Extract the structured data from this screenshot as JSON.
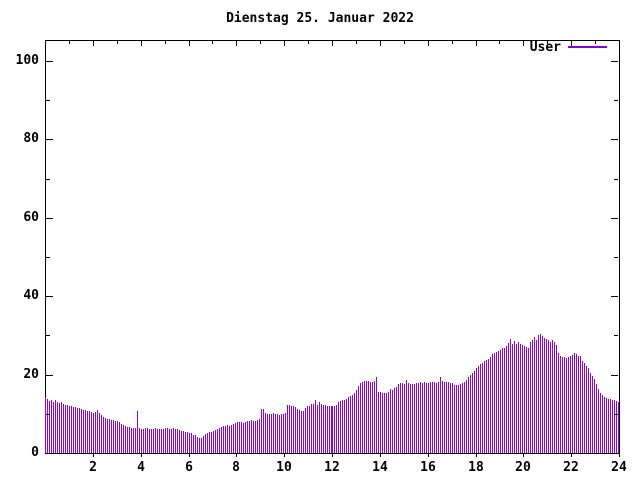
{
  "chart_data": {
    "type": "bar",
    "title": "Dienstag 25. Januar 2022",
    "legend": {
      "label": "User",
      "position": "top-right-inside"
    },
    "bar_color": "#9400d3",
    "legend_line_color": "#8800d4",
    "axis_color": "#000000",
    "background_color": "#ffffff",
    "xlim": [
      0,
      24
    ],
    "ylim": [
      0,
      105
    ],
    "grid": false,
    "x_major_ticks": [
      2,
      4,
      6,
      8,
      10,
      12,
      14,
      16,
      18,
      20,
      22,
      24
    ],
    "x_minor_ticks": [
      1,
      3,
      5,
      7,
      9,
      11,
      13,
      15,
      17,
      19,
      21,
      23
    ],
    "y_major_ticks": [
      0,
      20,
      40,
      60,
      80,
      100
    ],
    "y_minor_ticks": [
      10,
      30,
      50,
      70,
      90
    ],
    "series": [
      {
        "name": "User",
        "start_hour": 0,
        "interval_minutes": 5,
        "values": [
          14.3,
          13.8,
          13.2,
          13.5,
          12.9,
          13.4,
          13.0,
          12.7,
          12.9,
          12.5,
          12.3,
          12.2,
          12.1,
          12.0,
          11.8,
          11.7,
          11.5,
          11.4,
          11.2,
          11.0,
          10.9,
          10.7,
          10.6,
          10.4,
          10.2,
          10.5,
          10.9,
          10.1,
          9.6,
          9.3,
          9.0,
          8.8,
          8.6,
          8.4,
          8.3,
          8.2,
          8.1,
          7.8,
          7.5,
          7.2,
          6.9,
          6.7,
          6.6,
          6.5,
          6.4,
          6.4,
          10.6,
          6.3,
          6.2,
          6.1,
          6.3,
          6.4,
          6.1,
          6.0,
          6.2,
          6.3,
          6.1,
          6.0,
          6.2,
          6.1,
          6.3,
          6.4,
          6.2,
          6.1,
          6.3,
          6.2,
          6.0,
          5.9,
          5.7,
          5.6,
          5.4,
          5.3,
          5.2,
          5.0,
          4.7,
          4.5,
          4.2,
          3.9,
          3.8,
          4.3,
          4.8,
          5.1,
          5.3,
          5.4,
          5.6,
          5.8,
          6.1,
          6.4,
          6.6,
          6.9,
          7.0,
          7.1,
          7.0,
          7.2,
          7.4,
          7.6,
          7.8,
          7.9,
          7.8,
          7.7,
          8.0,
          8.2,
          8.1,
          8.3,
          8.1,
          8.2,
          8.4,
          8.6,
          11.2,
          11.3,
          10.1,
          10.0,
          9.9,
          10.0,
          10.1,
          9.9,
          10.0,
          9.8,
          9.9,
          10.0,
          10.2,
          12.3,
          12.2,
          12.0,
          11.9,
          11.8,
          11.2,
          11.0,
          10.8,
          10.7,
          11.4,
          11.9,
          12.1,
          12.4,
          12.6,
          13.6,
          12.2,
          12.9,
          12.5,
          12.3,
          12.2,
          12.0,
          11.9,
          12.0,
          12.1,
          12.0,
          12.3,
          13.0,
          13.3,
          13.5,
          13.6,
          13.8,
          14.2,
          14.6,
          14.9,
          15.2,
          16.0,
          17.1,
          17.8,
          18.2,
          18.3,
          18.4,
          18.3,
          18.1,
          18.2,
          18.3,
          19.5,
          15.6,
          15.5,
          15.3,
          15.2,
          15.4,
          15.6,
          16.3,
          16.1,
          16.5,
          16.9,
          17.7,
          17.9,
          17.8,
          17.6,
          18.5,
          17.9,
          17.7,
          17.6,
          17.7,
          17.8,
          17.9,
          18.0,
          17.9,
          18.0,
          17.9,
          17.9,
          18.0,
          18.1,
          18.0,
          17.9,
          18.0,
          19.4,
          18.3,
          18.2,
          18.1,
          18.0,
          17.9,
          17.8,
          17.4,
          17.3,
          17.4,
          17.5,
          17.8,
          18.2,
          18.7,
          19.3,
          19.8,
          20.3,
          21.0,
          21.8,
          22.2,
          22.6,
          23.0,
          23.4,
          23.7,
          24.0,
          24.6,
          25.2,
          25.5,
          25.8,
          26.1,
          26.4,
          26.7,
          26.9,
          27.4,
          28.0,
          29.2,
          27.8,
          28.6,
          27.9,
          28.3,
          27.7,
          27.5,
          27.4,
          27.0,
          26.8,
          28.2,
          28.8,
          29.6,
          28.9,
          30.2,
          30.4,
          29.8,
          29.4,
          29.2,
          28.9,
          28.4,
          28.7,
          28.2,
          27.6,
          25.4,
          24.8,
          24.4,
          24.6,
          24.3,
          24.5,
          24.8,
          25.0,
          25.5,
          25.2,
          24.8,
          24.7,
          23.4,
          23.0,
          22.2,
          21.7,
          20.3,
          19.6,
          19.0,
          17.5,
          16.2,
          15.2,
          14.7,
          14.3,
          14.0,
          13.8,
          13.7,
          13.5,
          13.4,
          13.2,
          13.0
        ]
      }
    ]
  }
}
